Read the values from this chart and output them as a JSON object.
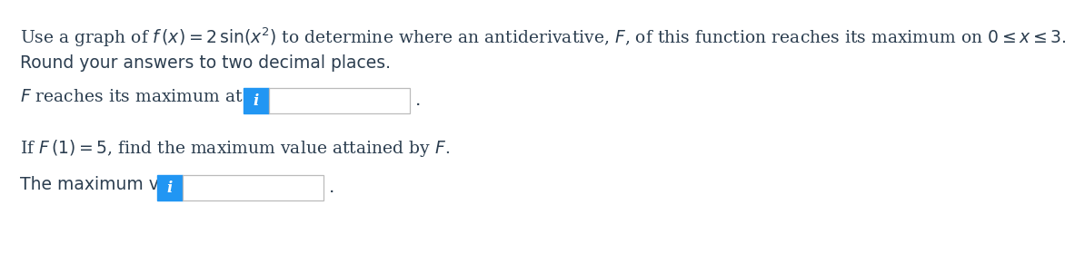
{
  "background_color": "#ffffff",
  "text_color": "#2c3e50",
  "hint_box_color": "#2196F3",
  "hint_text": "i",
  "hint_text_color": "#ffffff",
  "input_box_color": "#ffffff",
  "input_box_border": "#bbbbbb",
  "font_size_main": 13.5,
  "font_size_hint": 12,
  "line1_pre": "Use a graph of ",
  "line1_math": "f (x) = 2 sin (x²)",
  "line1_post": " to determine where an antiderivative, F, of this function reaches its maximum on 0 ≤ x ≤ 3.",
  "line2": "Round your answers to two decimal places.",
  "line3_pre": "F reaches its maximum at x =",
  "line4": "If F (1) = 5, find the maximum value attained by F.",
  "line5_pre": "The maximum value is"
}
